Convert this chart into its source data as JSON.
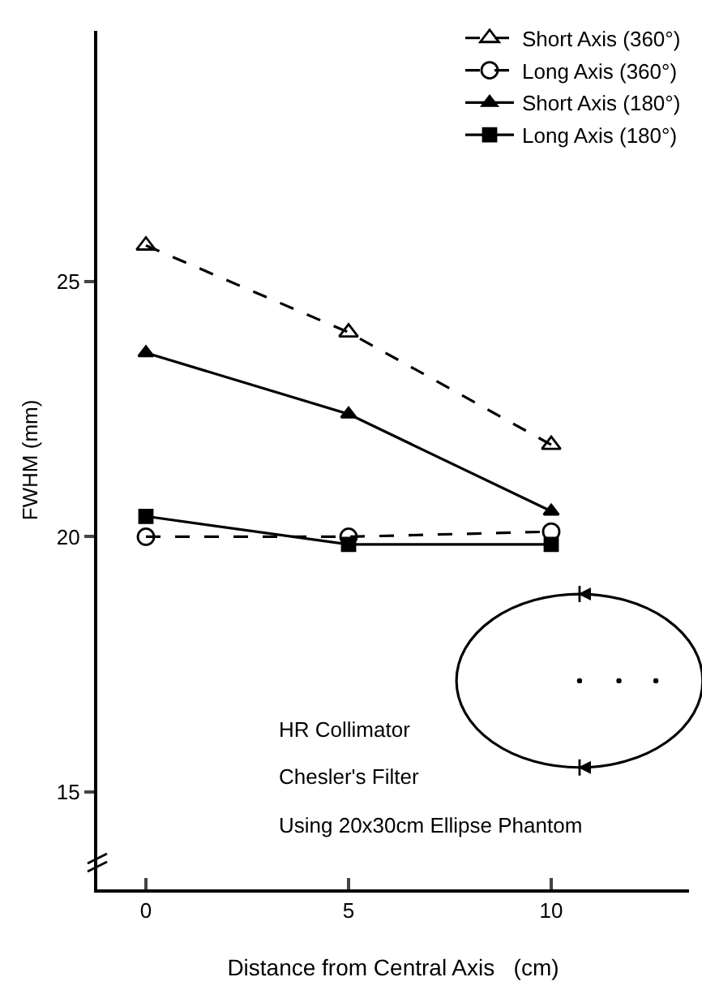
{
  "chart_data": {
    "type": "line",
    "xlabel": "Distance from Central Axis   (cm)",
    "ylabel": "FWHM (mm)",
    "x": [
      0,
      5,
      10
    ],
    "series": [
      {
        "name": "Short Axis (360°)",
        "color": "#000000",
        "values": [
          25.7,
          24.0,
          21.8
        ],
        "marker": "triangle",
        "line_style": "dashed"
      },
      {
        "name": "Long Axis (360°)",
        "color": "#000000",
        "values": [
          20.0,
          20.0,
          20.1
        ],
        "marker": "circle",
        "line_style": "dashed"
      },
      {
        "name": "Short Axis (180°)",
        "color": "#000000",
        "values": [
          23.6,
          22.4,
          20.5
        ],
        "marker": "triangle",
        "line_style": "solid"
      },
      {
        "name": "Long Axis (180°)",
        "color": "#000000",
        "values": [
          20.4,
          19.85,
          19.85
        ],
        "marker": "square",
        "line_style": "solid"
      }
    ],
    "xlim": [
      -1.2,
      13.4
    ],
    "xticks": [
      0,
      5,
      10
    ],
    "ylim": [
      13.1,
      29.9
    ],
    "yticks": [
      15,
      20,
      25
    ],
    "legend": "top right",
    "annotations": [
      "HR Collimator",
      "Chesler's Filter",
      "Using 20x30cm Ellipse Phantom"
    ]
  }
}
